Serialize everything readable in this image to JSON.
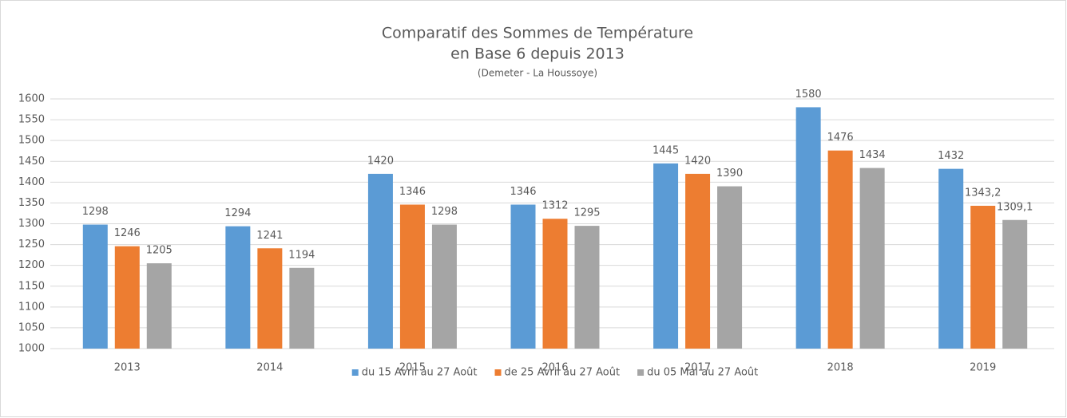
{
  "chart_data": {
    "type": "bar",
    "title": [
      "Comparatif des Sommes de Température",
      "en Base 6 depuis 2013"
    ],
    "subtitle": "(Demeter - La Houssoye)",
    "categories": [
      "2013",
      "2014",
      "2015",
      "2016",
      "2017",
      "2018",
      "2019"
    ],
    "series": [
      {
        "name": "du 15 Avril au 27 Août",
        "color": "#5b9bd5",
        "values": [
          1298,
          1294,
          1420,
          1346,
          1445,
          1580,
          1432
        ],
        "value_labels": [
          "1298",
          "1294",
          "1420",
          "1346",
          "1445",
          "1580",
          "1432"
        ]
      },
      {
        "name": "de 25 Avril au 27 Août",
        "color": "#ed7d31",
        "values": [
          1246,
          1241,
          1346,
          1312,
          1420,
          1476,
          1343.2
        ],
        "value_labels": [
          "1246",
          "1241",
          "1346",
          "1312",
          "1420",
          "1476",
          "1343,2"
        ]
      },
      {
        "name": "du 05 Mai au 27 Août",
        "color": "#a5a5a5",
        "values": [
          1205,
          1194,
          1298,
          1295,
          1390,
          1434,
          1309.1
        ],
        "value_labels": [
          "1205",
          "1194",
          "1298",
          "1295",
          "1390",
          "1434",
          "1309,1"
        ]
      }
    ],
    "ylim": [
      1000,
      1600
    ],
    "yticks": [
      1000,
      1050,
      1100,
      1150,
      1200,
      1250,
      1300,
      1350,
      1400,
      1450,
      1500,
      1550,
      1600
    ],
    "grid": true,
    "legend": "bottom"
  }
}
